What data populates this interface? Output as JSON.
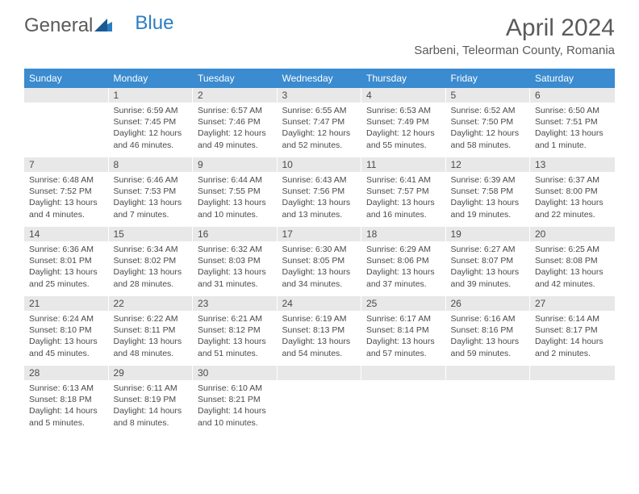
{
  "logo": {
    "text1": "General",
    "text2": "Blue"
  },
  "title": "April 2024",
  "location": "Sarbeni, Teleorman County, Romania",
  "weekdays": [
    "Sunday",
    "Monday",
    "Tuesday",
    "Wednesday",
    "Thursday",
    "Friday",
    "Saturday"
  ],
  "colors": {
    "header_bg": "#3a8bd0",
    "day_header_bg": "#e8e8e8",
    "text": "#4a4a4a",
    "logo_gray": "#5a5a5a",
    "logo_blue": "#2b7dc4"
  },
  "weeks": [
    [
      {
        "n": "",
        "sr": "",
        "ss": "",
        "dl": ""
      },
      {
        "n": "1",
        "sr": "Sunrise: 6:59 AM",
        "ss": "Sunset: 7:45 PM",
        "dl": "Daylight: 12 hours and 46 minutes."
      },
      {
        "n": "2",
        "sr": "Sunrise: 6:57 AM",
        "ss": "Sunset: 7:46 PM",
        "dl": "Daylight: 12 hours and 49 minutes."
      },
      {
        "n": "3",
        "sr": "Sunrise: 6:55 AM",
        "ss": "Sunset: 7:47 PM",
        "dl": "Daylight: 12 hours and 52 minutes."
      },
      {
        "n": "4",
        "sr": "Sunrise: 6:53 AM",
        "ss": "Sunset: 7:49 PM",
        "dl": "Daylight: 12 hours and 55 minutes."
      },
      {
        "n": "5",
        "sr": "Sunrise: 6:52 AM",
        "ss": "Sunset: 7:50 PM",
        "dl": "Daylight: 12 hours and 58 minutes."
      },
      {
        "n": "6",
        "sr": "Sunrise: 6:50 AM",
        "ss": "Sunset: 7:51 PM",
        "dl": "Daylight: 13 hours and 1 minute."
      }
    ],
    [
      {
        "n": "7",
        "sr": "Sunrise: 6:48 AM",
        "ss": "Sunset: 7:52 PM",
        "dl": "Daylight: 13 hours and 4 minutes."
      },
      {
        "n": "8",
        "sr": "Sunrise: 6:46 AM",
        "ss": "Sunset: 7:53 PM",
        "dl": "Daylight: 13 hours and 7 minutes."
      },
      {
        "n": "9",
        "sr": "Sunrise: 6:44 AM",
        "ss": "Sunset: 7:55 PM",
        "dl": "Daylight: 13 hours and 10 minutes."
      },
      {
        "n": "10",
        "sr": "Sunrise: 6:43 AM",
        "ss": "Sunset: 7:56 PM",
        "dl": "Daylight: 13 hours and 13 minutes."
      },
      {
        "n": "11",
        "sr": "Sunrise: 6:41 AM",
        "ss": "Sunset: 7:57 PM",
        "dl": "Daylight: 13 hours and 16 minutes."
      },
      {
        "n": "12",
        "sr": "Sunrise: 6:39 AM",
        "ss": "Sunset: 7:58 PM",
        "dl": "Daylight: 13 hours and 19 minutes."
      },
      {
        "n": "13",
        "sr": "Sunrise: 6:37 AM",
        "ss": "Sunset: 8:00 PM",
        "dl": "Daylight: 13 hours and 22 minutes."
      }
    ],
    [
      {
        "n": "14",
        "sr": "Sunrise: 6:36 AM",
        "ss": "Sunset: 8:01 PM",
        "dl": "Daylight: 13 hours and 25 minutes."
      },
      {
        "n": "15",
        "sr": "Sunrise: 6:34 AM",
        "ss": "Sunset: 8:02 PM",
        "dl": "Daylight: 13 hours and 28 minutes."
      },
      {
        "n": "16",
        "sr": "Sunrise: 6:32 AM",
        "ss": "Sunset: 8:03 PM",
        "dl": "Daylight: 13 hours and 31 minutes."
      },
      {
        "n": "17",
        "sr": "Sunrise: 6:30 AM",
        "ss": "Sunset: 8:05 PM",
        "dl": "Daylight: 13 hours and 34 minutes."
      },
      {
        "n": "18",
        "sr": "Sunrise: 6:29 AM",
        "ss": "Sunset: 8:06 PM",
        "dl": "Daylight: 13 hours and 37 minutes."
      },
      {
        "n": "19",
        "sr": "Sunrise: 6:27 AM",
        "ss": "Sunset: 8:07 PM",
        "dl": "Daylight: 13 hours and 39 minutes."
      },
      {
        "n": "20",
        "sr": "Sunrise: 6:25 AM",
        "ss": "Sunset: 8:08 PM",
        "dl": "Daylight: 13 hours and 42 minutes."
      }
    ],
    [
      {
        "n": "21",
        "sr": "Sunrise: 6:24 AM",
        "ss": "Sunset: 8:10 PM",
        "dl": "Daylight: 13 hours and 45 minutes."
      },
      {
        "n": "22",
        "sr": "Sunrise: 6:22 AM",
        "ss": "Sunset: 8:11 PM",
        "dl": "Daylight: 13 hours and 48 minutes."
      },
      {
        "n": "23",
        "sr": "Sunrise: 6:21 AM",
        "ss": "Sunset: 8:12 PM",
        "dl": "Daylight: 13 hours and 51 minutes."
      },
      {
        "n": "24",
        "sr": "Sunrise: 6:19 AM",
        "ss": "Sunset: 8:13 PM",
        "dl": "Daylight: 13 hours and 54 minutes."
      },
      {
        "n": "25",
        "sr": "Sunrise: 6:17 AM",
        "ss": "Sunset: 8:14 PM",
        "dl": "Daylight: 13 hours and 57 minutes."
      },
      {
        "n": "26",
        "sr": "Sunrise: 6:16 AM",
        "ss": "Sunset: 8:16 PM",
        "dl": "Daylight: 13 hours and 59 minutes."
      },
      {
        "n": "27",
        "sr": "Sunrise: 6:14 AM",
        "ss": "Sunset: 8:17 PM",
        "dl": "Daylight: 14 hours and 2 minutes."
      }
    ],
    [
      {
        "n": "28",
        "sr": "Sunrise: 6:13 AM",
        "ss": "Sunset: 8:18 PM",
        "dl": "Daylight: 14 hours and 5 minutes."
      },
      {
        "n": "29",
        "sr": "Sunrise: 6:11 AM",
        "ss": "Sunset: 8:19 PM",
        "dl": "Daylight: 14 hours and 8 minutes."
      },
      {
        "n": "30",
        "sr": "Sunrise: 6:10 AM",
        "ss": "Sunset: 8:21 PM",
        "dl": "Daylight: 14 hours and 10 minutes."
      },
      {
        "n": "",
        "sr": "",
        "ss": "",
        "dl": ""
      },
      {
        "n": "",
        "sr": "",
        "ss": "",
        "dl": ""
      },
      {
        "n": "",
        "sr": "",
        "ss": "",
        "dl": ""
      },
      {
        "n": "",
        "sr": "",
        "ss": "",
        "dl": ""
      }
    ]
  ]
}
